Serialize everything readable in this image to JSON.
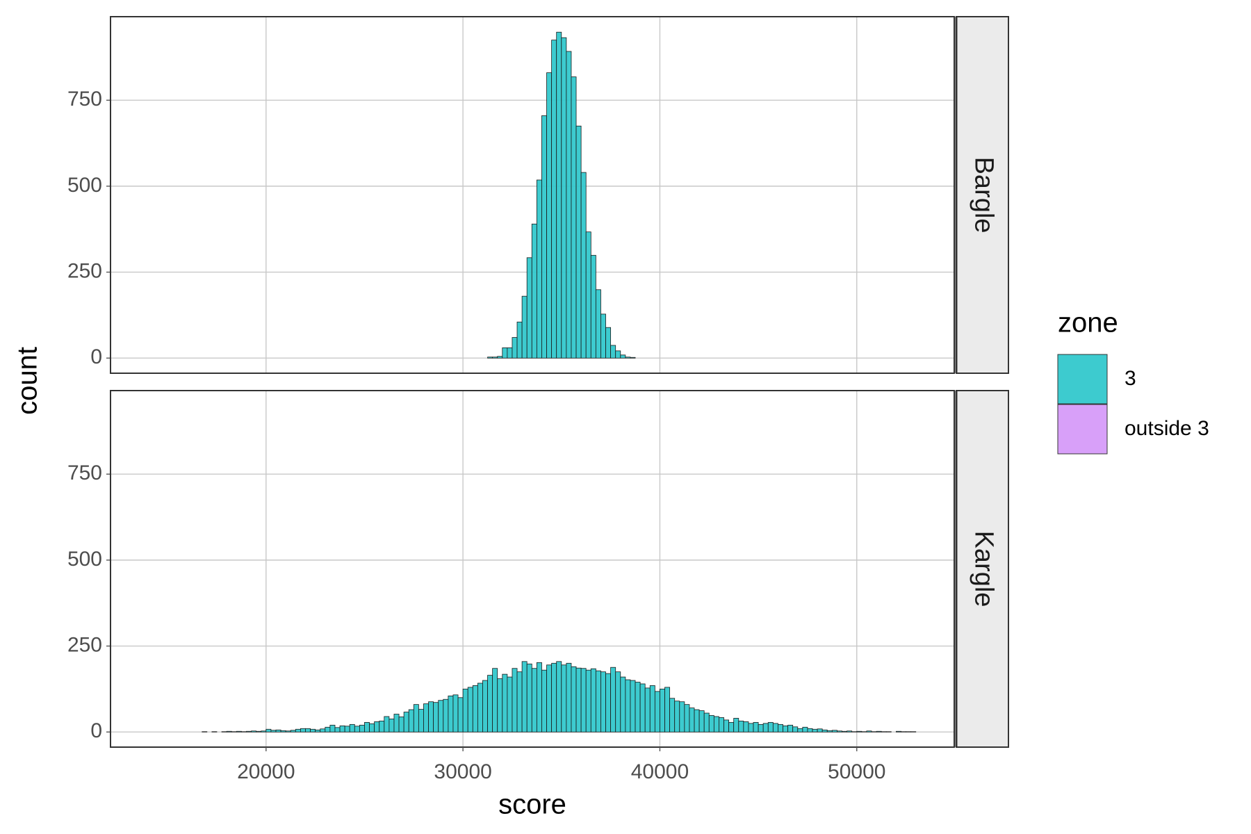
{
  "chart_data": {
    "type": "histogram",
    "x_label": "score",
    "y_label": "count",
    "bins": [
      14000,
      14250,
      14500,
      14750,
      15000,
      15250,
      15500,
      15750,
      16000,
      16250,
      16500,
      16750,
      17000,
      17250,
      17500,
      17750,
      18000,
      18250,
      18500,
      18750,
      19000,
      19250,
      19500,
      19750,
      20000,
      20250,
      20500,
      20750,
      21000,
      21250,
      21500,
      21750,
      22000,
      22250,
      22500,
      22750,
      23000,
      23250,
      23500,
      23750,
      24000,
      24250,
      24500,
      24750,
      25000,
      25250,
      25500,
      25750,
      26000,
      26250,
      26500,
      26750,
      27000,
      27250,
      27500,
      27750,
      28000,
      28250,
      28500,
      28750,
      29000,
      29250,
      29500,
      29750,
      30000,
      30250,
      30500,
      30750,
      31000,
      31250,
      31500,
      31750,
      32000,
      32250,
      32500,
      32750,
      33000,
      33250,
      33500,
      33750,
      34000,
      34250,
      34500,
      34750,
      35000,
      35250,
      35500,
      35750,
      36000,
      36250,
      36500,
      36750,
      37000,
      37250,
      37500,
      37750,
      38000,
      38250,
      38500,
      38750,
      39000,
      39250,
      39500,
      39750,
      40000,
      40250,
      40500,
      40750,
      41000,
      41250,
      41500,
      41750,
      42000,
      42250,
      42500,
      42750,
      43000,
      43250,
      43500,
      43750,
      44000,
      44250,
      44500,
      44750,
      45000,
      45250,
      45500,
      45750,
      46000,
      46250,
      46500,
      46750,
      47000,
      47250,
      47500,
      47750,
      48000,
      48250,
      48500,
      48750,
      49000,
      49250,
      49500,
      49750,
      50000,
      50250,
      50500,
      50750,
      51000,
      51250,
      51500,
      51750,
      52000,
      52250,
      52500,
      52750,
      53000
    ],
    "xlim": [
      12100,
      54950
    ],
    "xticks": [
      20000,
      30000,
      40000,
      50000
    ],
    "ylim": [
      -44,
      993
    ],
    "yticks": [
      0,
      250,
      500,
      750
    ],
    "grid": true,
    "facets": [
      {
        "label": "Bargle",
        "color": "#33C8CC",
        "values": [
          0,
          0,
          0,
          0,
          0,
          0,
          0,
          0,
          0,
          0,
          0,
          0,
          0,
          0,
          0,
          0,
          0,
          0,
          0,
          0,
          0,
          0,
          0,
          0,
          0,
          0,
          0,
          0,
          0,
          0,
          0,
          0,
          0,
          0,
          0,
          0,
          0,
          0,
          0,
          0,
          0,
          0,
          0,
          0,
          0,
          0,
          0,
          0,
          0,
          0,
          0,
          0,
          0,
          0,
          0,
          0,
          0,
          0,
          0,
          0,
          0,
          0,
          0,
          0,
          0,
          0,
          0,
          0,
          0,
          3,
          3,
          5,
          30,
          30,
          60,
          105,
          180,
          292,
          390,
          518,
          705,
          830,
          925,
          948,
          932,
          892,
          818,
          675,
          540,
          367,
          299,
          199,
          128,
          89,
          37,
          21,
          9,
          3,
          2,
          0,
          0,
          0,
          0,
          0,
          0,
          0,
          0,
          0,
          0,
          0,
          0,
          0,
          0,
          0,
          0,
          0,
          0,
          0,
          0,
          0,
          0,
          0,
          0,
          0,
          0,
          0,
          0,
          0,
          0,
          0,
          0,
          0,
          0,
          0,
          0,
          0,
          0,
          0,
          0,
          0,
          0,
          0,
          0,
          0,
          0,
          0,
          0,
          0,
          0,
          0,
          0,
          0,
          0,
          0,
          0,
          0
        ]
      },
      {
        "label": "Kargle",
        "color": "#33C8CC",
        "values": [
          0,
          0,
          0,
          0,
          0,
          0,
          0,
          0,
          0,
          0,
          0,
          1,
          0,
          1,
          0,
          1,
          2,
          1,
          2,
          1,
          2,
          3,
          2,
          3,
          8,
          5,
          6,
          4,
          3,
          5,
          8,
          10,
          10,
          8,
          6,
          9,
          14,
          20,
          13,
          18,
          17,
          22,
          17,
          20,
          28,
          24,
          30,
          32,
          45,
          38,
          52,
          44,
          58,
          65,
          80,
          66,
          82,
          88,
          86,
          92,
          95,
          105,
          108,
          100,
          125,
          130,
          135,
          142,
          150,
          165,
          185,
          155,
          168,
          160,
          185,
          175,
          205,
          198,
          185,
          202,
          180,
          195,
          200,
          205,
          195,
          200,
          190,
          186,
          185,
          180,
          184,
          178,
          175,
          170,
          188,
          175,
          160,
          152,
          150,
          145,
          140,
          128,
          135,
          118,
          125,
          130,
          98,
          90,
          88,
          80,
          70,
          65,
          62,
          55,
          48,
          45,
          42,
          35,
          28,
          40,
          32,
          30,
          25,
          28,
          22,
          25,
          28,
          25,
          22,
          18,
          20,
          15,
          10,
          14,
          10,
          8,
          9,
          6,
          4,
          5,
          3,
          2,
          3,
          1,
          2,
          1,
          3,
          1,
          2,
          1,
          1,
          0,
          2,
          1,
          1,
          1
        ]
      }
    ],
    "legend": {
      "title": "zone",
      "position": "right",
      "items": [
        {
          "name": "3",
          "color": "#33C8CC"
        },
        {
          "name": "outside 3",
          "color": "#D69BF9"
        }
      ]
    }
  }
}
